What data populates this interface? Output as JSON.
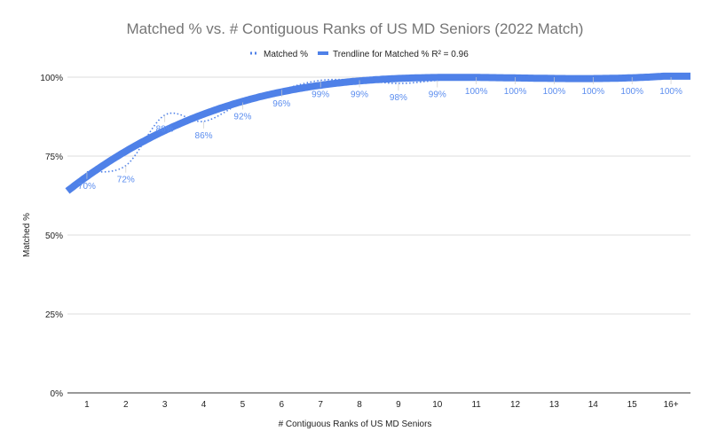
{
  "chart_data": {
    "type": "line",
    "title": "Matched % vs. # Contiguous Ranks of US MD Seniors (2022 Match)",
    "xlabel": "# Contiguous Ranks of US MD Seniors",
    "ylabel": "Matched %",
    "categories": [
      "1",
      "2",
      "3",
      "4",
      "5",
      "6",
      "7",
      "8",
      "9",
      "10",
      "11",
      "12",
      "13",
      "14",
      "15",
      "16+"
    ],
    "yticks": [
      "0%",
      "25%",
      "50%",
      "75%",
      "100%"
    ],
    "ylim": [
      0,
      100
    ],
    "grid": true,
    "legend": "top",
    "series": [
      {
        "name": "Matched %",
        "style": "dotted",
        "color": "#4f81e8",
        "values": [
          70,
          72,
          88,
          86,
          92,
          96,
          99,
          99,
          98,
          99,
          100,
          100,
          100,
          100,
          100,
          100
        ],
        "data_labels": [
          "70%",
          "72%",
          "88%",
          "86%",
          "92%",
          "96%",
          "99%",
          "99%",
          "98%",
          "99%",
          "100%",
          "100%",
          "100%",
          "100%",
          "100%",
          "100%"
        ]
      },
      {
        "name": "Trendline for Matched % R² = 0.96",
        "style": "thick",
        "color": "#4f81e8",
        "trendline_of": "Matched %",
        "r_squared": 0.96
      }
    ]
  }
}
